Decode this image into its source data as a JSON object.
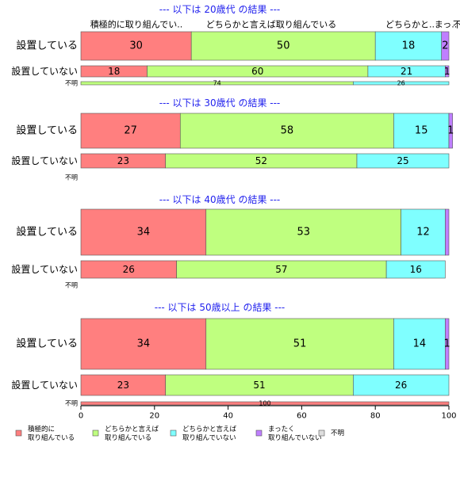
{
  "chart_data": {
    "type": "bar",
    "orientation": "horizontal",
    "stacked": true,
    "xlim": [
      0,
      100
    ],
    "xticks": [
      "0",
      "20",
      "40",
      "60",
      "80",
      "100"
    ],
    "grid": false,
    "legend_position": "bottom",
    "top_category_labels": [
      "積極的に取り組んでい..",
      "どちらかと言えば取り組んでいる",
      "どちらかと..",
      "まっ..",
      "不明"
    ],
    "series": [
      {
        "name": "積極的に\n取り組んでいる",
        "color": "#FF7F7F"
      },
      {
        "name": "どちらかと言えば\n取り組んでいる",
        "color": "#BFFF7F"
      },
      {
        "name": "どちらかと言えば\n取り組んでいない",
        "color": "#7FFFFF"
      },
      {
        "name": "まったく\n取り組んでいない",
        "color": "#BF7FFF"
      },
      {
        "name": "不明",
        "color": "#DDDDDD"
      }
    ],
    "groups": [
      {
        "title": "--- 以下は 20歳代 の結果 ---",
        "rows": [
          {
            "label": "設置している",
            "size": "large",
            "values": [
              30,
              50,
              18,
              2,
              0
            ],
            "labels": [
              "30",
              "50",
              "18",
              "2",
              ""
            ]
          },
          {
            "label": "設置していない",
            "size": "medium",
            "values": [
              18,
              60,
              21,
              1,
              0
            ],
            "labels": [
              "18",
              "60",
              "21",
              "1",
              ""
            ]
          },
          {
            "label": "不明",
            "size": "thin",
            "values": [
              0,
              74,
              26,
              0,
              0
            ],
            "labels": [
              "",
              "74",
              "26",
              "",
              ""
            ]
          }
        ]
      },
      {
        "title": "--- 以下は 30歳代 の結果 ---",
        "rows": [
          {
            "label": "設置している",
            "size": "large",
            "values": [
              27,
              58,
              15,
              1,
              0
            ],
            "labels": [
              "27",
              "58",
              "15",
              "1",
              ""
            ]
          },
          {
            "label": "設置していない",
            "size": "medium",
            "values": [
              23,
              52,
              25,
              0,
              0
            ],
            "labels": [
              "23",
              "52",
              "25",
              "",
              ""
            ]
          },
          {
            "label": "不明",
            "size": "thin",
            "values": [],
            "labels": []
          }
        ]
      },
      {
        "title": "--- 以下は 40歳代 の結果 ---",
        "rows": [
          {
            "label": "設置している",
            "size": "large",
            "values": [
              34,
              53,
              12,
              1,
              0
            ],
            "labels": [
              "34",
              "53",
              "12",
              "",
              ""
            ]
          },
          {
            "label": "設置していない",
            "size": "medium",
            "values": [
              26,
              57,
              16,
              0,
              0
            ],
            "labels": [
              "26",
              "57",
              "16",
              "",
              ""
            ]
          },
          {
            "label": "不明",
            "size": "thin",
            "values": [],
            "labels": []
          }
        ]
      },
      {
        "title": "--- 以下は 50歳以上 の結果 ---",
        "rows": [
          {
            "label": "設置している",
            "size": "large",
            "values": [
              34,
              51,
              14,
              1,
              0
            ],
            "labels": [
              "34",
              "51",
              "14",
              "1",
              ""
            ]
          },
          {
            "label": "設置していない",
            "size": "medium",
            "values": [
              23,
              51,
              26,
              0,
              0
            ],
            "labels": [
              "23",
              "51",
              "26",
              "",
              ""
            ]
          },
          {
            "label": "不明",
            "size": "thin",
            "values": [
              100,
              0,
              0,
              0,
              0
            ],
            "labels": [
              "100",
              "",
              "",
              "",
              ""
            ]
          }
        ]
      }
    ]
  }
}
